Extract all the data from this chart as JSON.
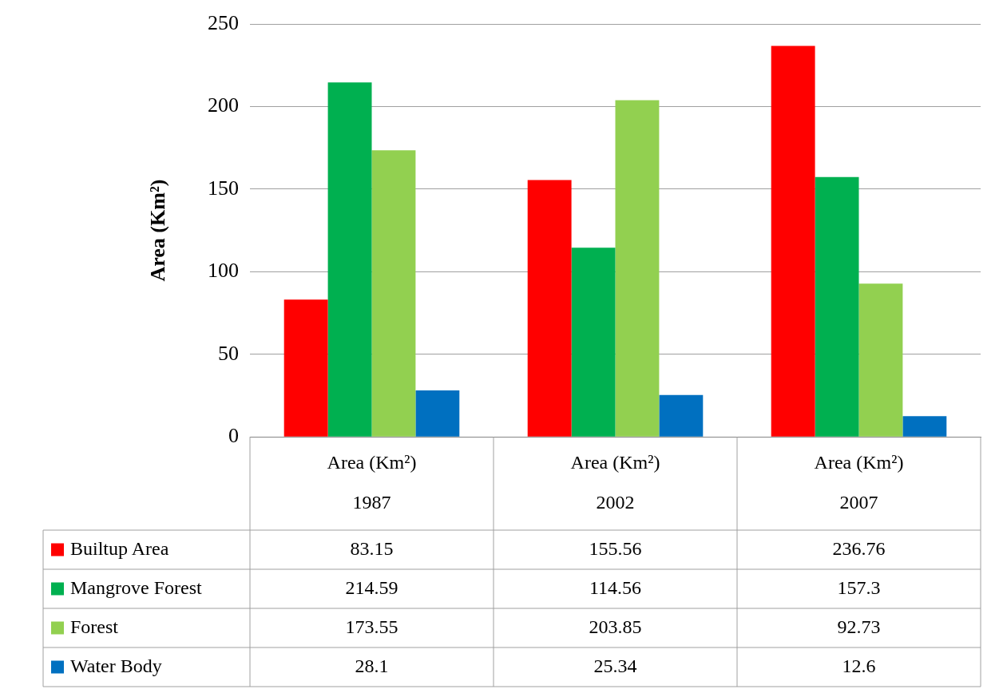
{
  "chart_data": {
    "type": "bar",
    "ylabel": "Area (Km²)",
    "categories": [
      "Area (Km²)\n1987",
      "Area (Km²)\n2002",
      "Area (Km²)\n2007"
    ],
    "series": [
      {
        "name": "Builtup Area",
        "color": "#ff0000",
        "values": [
          83.15,
          155.56,
          236.76
        ]
      },
      {
        "name": "Mangrove Forest",
        "color": "#00b050",
        "values": [
          214.59,
          114.56,
          157.3
        ]
      },
      {
        "name": "Forest",
        "color": "#92d050",
        "values": [
          173.55,
          203.85,
          92.73
        ]
      },
      {
        "name": "Water Body",
        "color": "#0070c0",
        "values": [
          28.1,
          25.34,
          12.6
        ]
      }
    ],
    "ylim": [
      0,
      250
    ],
    "yticks": [
      0,
      50,
      100,
      150,
      200,
      250
    ],
    "grid": "y",
    "legend": "bottom",
    "data_labels": true
  }
}
